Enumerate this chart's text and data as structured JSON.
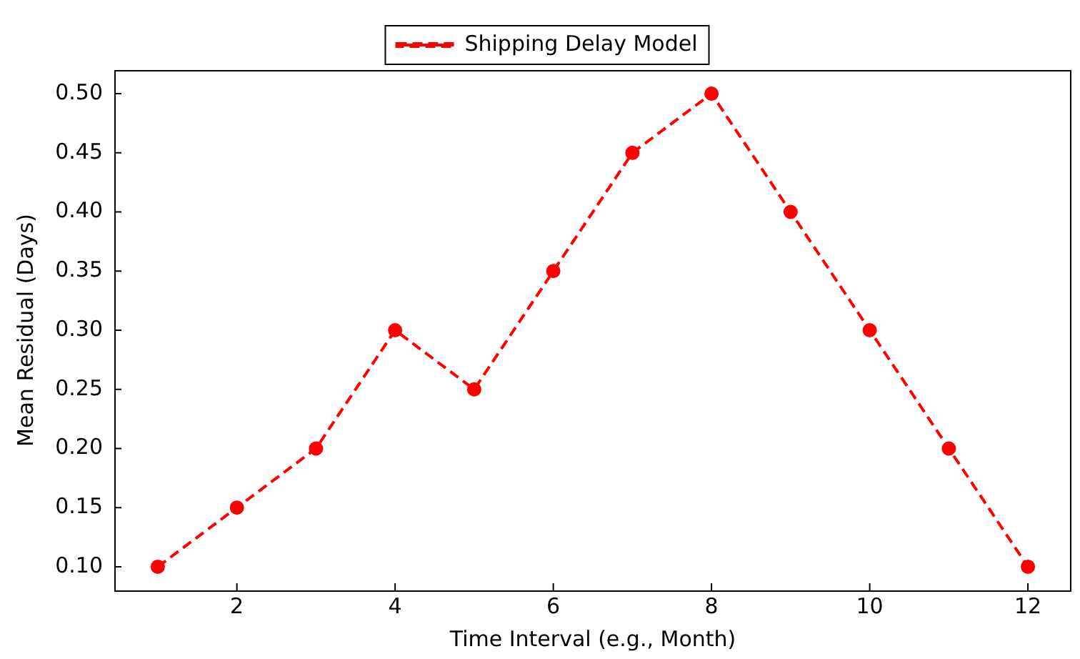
{
  "chart_data": {
    "type": "line",
    "xlabel": "Time Interval (e.g., Month)",
    "ylabel": "Mean Residual (Days)",
    "x": [
      1,
      2,
      3,
      4,
      5,
      6,
      7,
      8,
      9,
      10,
      11,
      12
    ],
    "series": [
      {
        "name": "Shipping Delay Model",
        "color": "#ff0000",
        "values": [
          0.1,
          0.15,
          0.2,
          0.3,
          0.25,
          0.35,
          0.45,
          0.5,
          0.4,
          0.3,
          0.2,
          0.1
        ]
      }
    ],
    "xlim": [
      0.45,
      12.55
    ],
    "xticks": [
      2,
      4,
      6,
      8,
      10,
      12
    ],
    "ylim": [
      0.08,
      0.52
    ],
    "yticks": [
      {
        "value": 0.1,
        "label": "0.10"
      },
      {
        "value": 0.15,
        "label": "0.15"
      },
      {
        "value": 0.2,
        "label": "0.20"
      },
      {
        "value": 0.25,
        "label": "0.25"
      },
      {
        "value": 0.3,
        "label": "0.30"
      },
      {
        "value": 0.35,
        "label": "0.35"
      },
      {
        "value": 0.4,
        "label": "0.40"
      },
      {
        "value": 0.45,
        "label": "0.45"
      },
      {
        "value": 0.5,
        "label": "0.50"
      }
    ],
    "grid": false,
    "legend": "top",
    "marker": "circle",
    "line_style": "dashed"
  }
}
